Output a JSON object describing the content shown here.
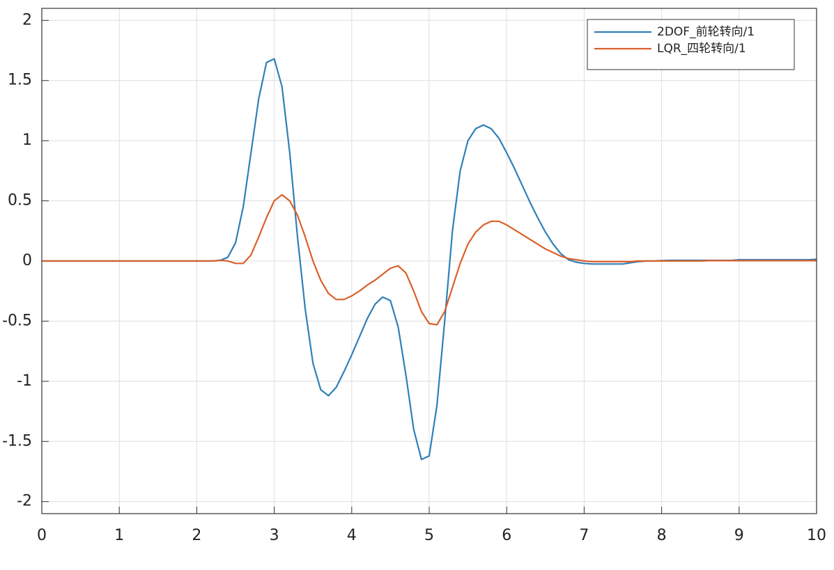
{
  "chart_data": {
    "type": "line",
    "x": [
      0,
      0.1,
      0.2,
      0.3,
      0.4,
      0.5,
      0.6,
      0.7,
      0.8,
      0.9,
      1,
      1.1,
      1.2,
      1.3,
      1.4,
      1.5,
      1.6,
      1.7,
      1.8,
      1.9,
      2,
      2.1,
      2.2,
      2.3,
      2.4,
      2.5,
      2.6,
      2.7,
      2.8,
      2.9,
      3,
      3.1,
      3.2,
      3.3,
      3.4,
      3.5,
      3.6,
      3.7,
      3.8,
      3.9,
      4,
      4.1,
      4.2,
      4.3,
      4.4,
      4.5,
      4.6,
      4.7,
      4.8,
      4.9,
      5,
      5.1,
      5.2,
      5.3,
      5.4,
      5.5,
      5.6,
      5.7,
      5.8,
      5.9,
      6,
      6.1,
      6.2,
      6.3,
      6.4,
      6.5,
      6.6,
      6.7,
      6.8,
      6.9,
      7,
      7.1,
      7.2,
      7.3,
      7.4,
      7.5,
      7.6,
      7.7,
      7.8,
      7.9,
      8,
      8.1,
      8.2,
      8.3,
      8.4,
      8.5,
      8.6,
      8.7,
      8.8,
      8.9,
      9,
      9.1,
      9.2,
      9.3,
      9.4,
      9.5,
      9.6,
      9.7,
      9.8,
      9.9,
      10
    ],
    "series": [
      {
        "name": "2DOF_前轮转向/1",
        "color": "#2f7fb8",
        "values": [
          0,
          0,
          0,
          0,
          0,
          0,
          0,
          0,
          0,
          0,
          0,
          0,
          0,
          0,
          0,
          0,
          0,
          0,
          0,
          0,
          0,
          0,
          0,
          0.005,
          0.03,
          0.15,
          0.45,
          0.9,
          1.35,
          1.65,
          1.68,
          1.45,
          0.9,
          0.2,
          -0.4,
          -0.85,
          -1.07,
          -1.12,
          -1.05,
          -0.92,
          -0.78,
          -0.63,
          -0.48,
          -0.36,
          -0.3,
          -0.33,
          -0.55,
          -0.95,
          -1.4,
          -1.65,
          -1.62,
          -1.2,
          -0.5,
          0.25,
          0.75,
          1.0,
          1.1,
          1.13,
          1.1,
          1.02,
          0.9,
          0.77,
          0.63,
          0.49,
          0.36,
          0.24,
          0.14,
          0.06,
          0.01,
          -0.01,
          -0.02,
          -0.025,
          -0.025,
          -0.025,
          -0.025,
          -0.025,
          -0.015,
          -0.005,
          0,
          0,
          0.003,
          0.005,
          0.005,
          0.005,
          0.005,
          0.005,
          0.005,
          0.005,
          0.005,
          0.005,
          0.01,
          0.01,
          0.01,
          0.01,
          0.01,
          0.01,
          0.01,
          0.01,
          0.01,
          0.01,
          0.015
        ]
      },
      {
        "name": "LQR_四轮转向/1",
        "color": "#d9602a",
        "values": [
          0,
          0,
          0,
          0,
          0,
          0,
          0,
          0,
          0,
          0,
          0,
          0,
          0,
          0,
          0,
          0,
          0,
          0,
          0,
          0,
          0,
          0,
          0,
          0.005,
          0,
          -0.02,
          -0.02,
          0.05,
          0.2,
          0.36,
          0.5,
          0.55,
          0.5,
          0.38,
          0.2,
          0,
          -0.16,
          -0.27,
          -0.32,
          -0.32,
          -0.29,
          -0.25,
          -0.2,
          -0.16,
          -0.11,
          -0.06,
          -0.04,
          -0.1,
          -0.25,
          -0.42,
          -0.52,
          -0.53,
          -0.42,
          -0.22,
          -0.02,
          0.14,
          0.24,
          0.3,
          0.33,
          0.33,
          0.3,
          0.26,
          0.22,
          0.18,
          0.14,
          0.1,
          0.07,
          0.04,
          0.02,
          0.01,
          0,
          -0.005,
          -0.005,
          -0.005,
          -0.005,
          -0.005,
          -0.005,
          0,
          0,
          0,
          0,
          0,
          0,
          0,
          0,
          0,
          0.003,
          0.003,
          0.003,
          0.003,
          0.003,
          0.003,
          0.003,
          0.003,
          0.003,
          0.003,
          0.003,
          0.003,
          0.003,
          0.003,
          0.003
        ]
      }
    ],
    "xlim": [
      0,
      10
    ],
    "xticks": [
      0,
      1,
      2,
      3,
      4,
      5,
      6,
      7,
      8,
      9,
      10
    ],
    "ylim": [
      -2.1,
      2.1
    ],
    "yticks": [
      -2,
      -1.5,
      -1,
      -0.5,
      0,
      0.5,
      1,
      1.5,
      2
    ],
    "grid": true,
    "legend": "northeast"
  }
}
